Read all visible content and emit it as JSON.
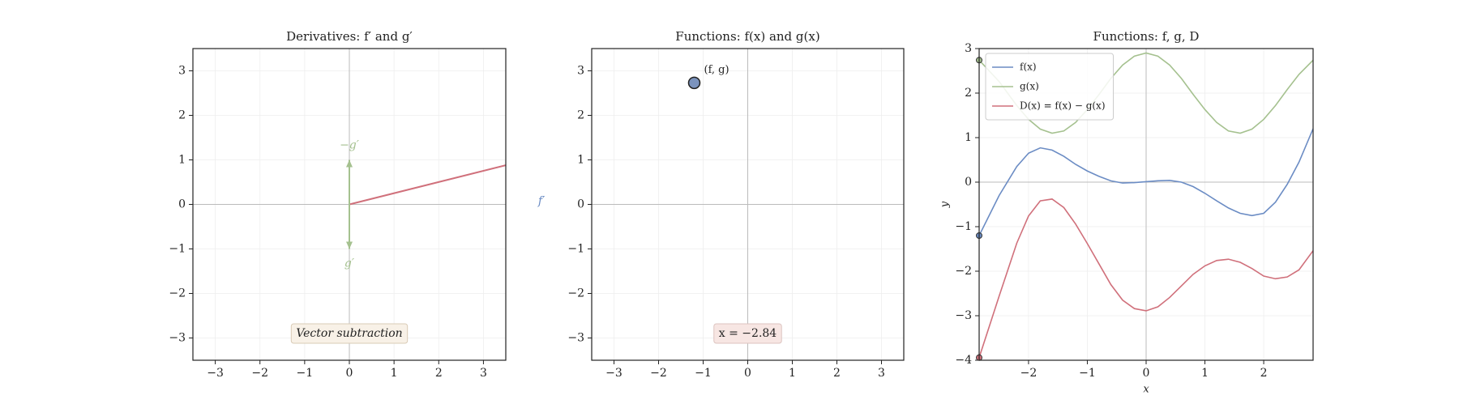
{
  "chart_data": [
    {
      "type": "vector",
      "title": "Derivatives: f′ and g′",
      "xlim": [
        -3.5,
        3.5
      ],
      "ylim": [
        -3.5,
        3.5
      ],
      "xticks": [
        {
          "value": -3,
          "label": "−3"
        },
        {
          "value": -2,
          "label": "−2"
        },
        {
          "value": -1,
          "label": "−1"
        },
        0,
        1,
        2,
        3
      ],
      "yticks": [
        {
          "value": -3,
          "label": "−3"
        },
        {
          "value": -2,
          "label": "−2"
        },
        {
          "value": -1,
          "label": "−1"
        },
        0,
        1,
        2,
        3
      ],
      "grid": true,
      "vectors": [
        {
          "label": "−g′",
          "color": "#a5c18f",
          "x": 0,
          "y": 1
        },
        {
          "label": "g′",
          "color": "#a5c18f",
          "x": 0,
          "y": -1
        }
      ],
      "segments": [
        {
          "color": "#d0707b",
          "x": [
            0,
            3.5
          ],
          "y": [
            0,
            0.88
          ]
        }
      ],
      "annotations": [
        {
          "text": "f′",
          "color": "#6b8cc4",
          "x": 4.3,
          "y": 0
        }
      ],
      "note": {
        "text": "Vector subtraction",
        "x": 0,
        "y": -2.9
      }
    },
    {
      "type": "scatter",
      "title": "Functions: f(x) and g(x)",
      "xlim": [
        -3.5,
        3.5
      ],
      "ylim": [
        -3.5,
        3.5
      ],
      "xticks": [
        {
          "value": -3,
          "label": "−3"
        },
        {
          "value": -2,
          "label": "−2"
        },
        {
          "value": -1,
          "label": "−1"
        },
        0,
        1,
        2,
        3
      ],
      "yticks": [
        {
          "value": -3,
          "label": "−3"
        },
        {
          "value": -2,
          "label": "−2"
        },
        {
          "value": -1,
          "label": "−1"
        },
        0,
        1,
        2,
        3
      ],
      "grid": true,
      "color": "#7b93bd",
      "x": [
        -1.2
      ],
      "y": [
        2.73
      ],
      "point_labels": [
        "(f, g)"
      ],
      "note": {
        "text": "x = −2.84",
        "x": 0,
        "y": -2.9
      }
    },
    {
      "type": "line",
      "title": "Functions: f, g, D",
      "xlabel": "x",
      "ylabel": "y",
      "xlim": [
        -2.84,
        2.84
      ],
      "ylim": [
        -4,
        3
      ],
      "xticks": [
        {
          "value": -2,
          "label": "−2"
        },
        {
          "value": -1,
          "label": "−1"
        },
        0,
        1,
        2
      ],
      "yticks": [
        {
          "value": -4,
          "label": "−4"
        },
        {
          "value": -3,
          "label": "−3"
        },
        {
          "value": -2,
          "label": "−2"
        },
        {
          "value": -1,
          "label": "−1"
        },
        0,
        1,
        2,
        3
      ],
      "grid": true,
      "legend": "upper left",
      "x": [
        -2.84,
        -2.5,
        -2.2,
        -2,
        -1.8,
        -1.6,
        -1.4,
        -1.2,
        -1,
        -0.8,
        -0.6,
        -0.4,
        -0.2,
        0,
        0.2,
        0.4,
        0.6,
        0.8,
        1,
        1.2,
        1.4,
        1.6,
        1.8,
        2,
        2.2,
        2.4,
        2.6,
        2.84
      ],
      "series": [
        {
          "name": "f(x)",
          "color": "#6b8cc4",
          "values": [
            -1.2,
            -0.3,
            0.35,
            0.65,
            0.77,
            0.72,
            0.58,
            0.4,
            0.25,
            0.13,
            0.03,
            -0.02,
            -0.01,
            0.01,
            0.03,
            0.04,
            0.0,
            -0.1,
            -0.25,
            -0.42,
            -0.58,
            -0.7,
            -0.75,
            -0.7,
            -0.45,
            -0.05,
            0.45,
            1.2
          ]
        },
        {
          "name": "g(x)",
          "color": "#a5c18f",
          "values": [
            2.74,
            2.26,
            1.72,
            1.41,
            1.19,
            1.1,
            1.15,
            1.34,
            1.63,
            1.97,
            2.33,
            2.63,
            2.83,
            2.9,
            2.83,
            2.63,
            2.33,
            1.97,
            1.63,
            1.34,
            1.15,
            1.1,
            1.19,
            1.41,
            1.72,
            2.08,
            2.42,
            2.74
          ]
        },
        {
          "name": "D(x) = f(x) − g(x)",
          "color": "#d0707b",
          "values": [
            -3.94,
            -2.56,
            -1.37,
            -0.76,
            -0.42,
            -0.38,
            -0.57,
            -0.94,
            -1.38,
            -1.84,
            -2.3,
            -2.65,
            -2.84,
            -2.89,
            -2.8,
            -2.59,
            -2.33,
            -2.07,
            -1.88,
            -1.76,
            -1.73,
            -1.8,
            -1.94,
            -2.11,
            -2.17,
            -2.13,
            -1.97,
            -1.54
          ]
        }
      ]
    }
  ]
}
